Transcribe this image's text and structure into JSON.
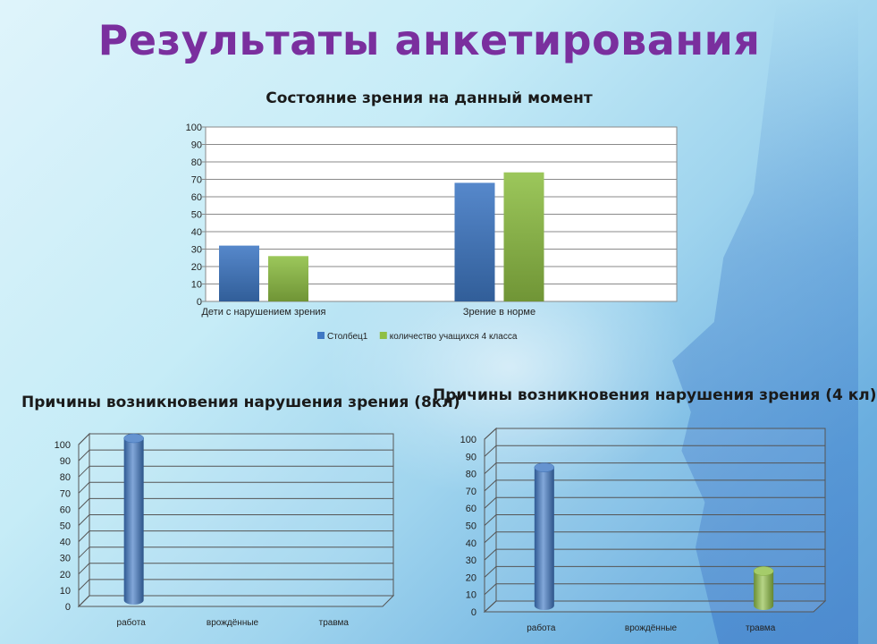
{
  "slide": {
    "title": "Результаты анкетирования"
  },
  "chart_data": [
    {
      "id": "chart1",
      "type": "bar",
      "title": "Состояние зрения на данный момент",
      "categories": [
        "Дети с нарушением зрения",
        "Зрение в норме"
      ],
      "series": [
        {
          "name": "Столбец1",
          "values": [
            32,
            68
          ],
          "color": "#3f78c4"
        },
        {
          "name": "количество учащихся 4 класса",
          "values": [
            26,
            74
          ],
          "color": "#8fbf45"
        }
      ],
      "ylim": [
        0,
        100
      ],
      "yticks": [
        0,
        10,
        20,
        30,
        40,
        50,
        60,
        70,
        80,
        90,
        100
      ],
      "grid": true,
      "legend": "bottom"
    },
    {
      "id": "chart2",
      "type": "bar",
      "style": "3d-cylinder",
      "title": "Причины возникновения нарушения зрения (8кл)",
      "categories": [
        "работа",
        "врождённые",
        "травма"
      ],
      "values": [
        100,
        0,
        0
      ],
      "colors": [
        "#3f78c4",
        "#3f78c4",
        "#3f78c4"
      ],
      "ylim": [
        0,
        100
      ],
      "yticks": [
        0,
        10,
        20,
        30,
        40,
        50,
        60,
        70,
        80,
        90,
        100
      ],
      "grid": true
    },
    {
      "id": "chart3",
      "type": "bar",
      "style": "3d-cylinder",
      "title": "Причины возникновения нарушения зрения (4 кл)",
      "categories": [
        "работа",
        "врождённые",
        "травма"
      ],
      "values": [
        80,
        0,
        20
      ],
      "colors": [
        "#3f78c4",
        "#3f78c4",
        "#8fbf45"
      ],
      "ylim": [
        0,
        100
      ],
      "yticks": [
        0,
        10,
        20,
        30,
        40,
        50,
        60,
        70,
        80,
        90,
        100
      ],
      "grid": true
    }
  ]
}
